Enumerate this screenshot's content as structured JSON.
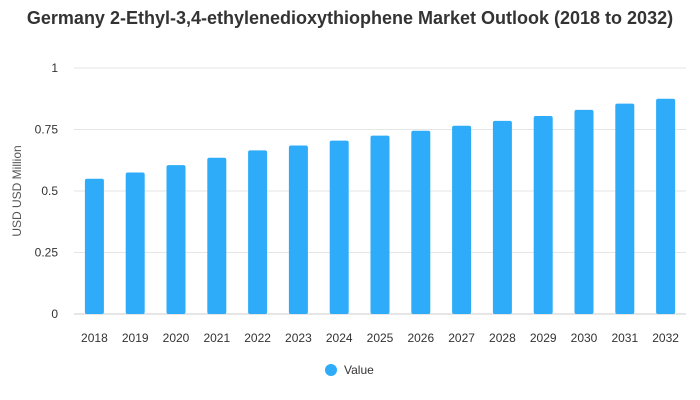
{
  "chart_data": {
    "type": "bar",
    "title": "Germany 2-Ethyl-3,4-ethylenedioxythiophene Market Outlook (2018 to 2032)",
    "xlabel": "",
    "ylabel": "USD USD Million",
    "categories": [
      "2018",
      "2019",
      "2020",
      "2021",
      "2022",
      "2023",
      "2024",
      "2025",
      "2026",
      "2027",
      "2028",
      "2029",
      "2030",
      "2031",
      "2032"
    ],
    "series": [
      {
        "name": "Value",
        "color": "#2eacfa",
        "values": [
          0.55,
          0.575,
          0.605,
          0.635,
          0.665,
          0.685,
          0.705,
          0.725,
          0.745,
          0.765,
          0.785,
          0.805,
          0.83,
          0.855,
          0.875
        ]
      }
    ],
    "ylim": [
      0,
      1
    ],
    "yticks": [
      "0",
      "0.25",
      "0.5",
      "0.75",
      "1"
    ],
    "grid": true,
    "legend": "bottom-center"
  }
}
